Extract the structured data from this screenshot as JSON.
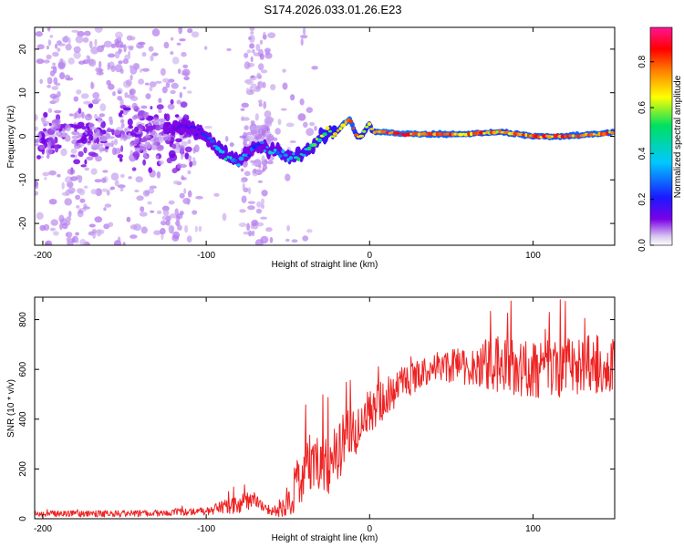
{
  "figure_title": "S174.2026.033.01.26.E23",
  "chart_data": [
    {
      "type": "heatmap",
      "title": "S174.2026.033.01.26.E23",
      "xlabel": "Height of straight line (km)",
      "ylabel": "Frequency (Hz)",
      "xlim": [
        -205,
        150
      ],
      "ylim": [
        -25,
        25
      ],
      "xticks": [
        -200,
        -100,
        0,
        100
      ],
      "yticks": [
        -20,
        -10,
        0,
        10,
        20
      ],
      "colorbar": {
        "label": "Normalized spectral amplitude",
        "range": [
          0,
          0.95
        ],
        "ticks": [
          0.0,
          0.2,
          0.4,
          0.6,
          0.8
        ],
        "colormap": [
          "#d8c8f0",
          "#7a00e6",
          "#1a1aff",
          "#00c8ff",
          "#00e060",
          "#ffff00",
          "#ff8000",
          "#ff0000",
          "#ff1493"
        ]
      },
      "ridge": {
        "x": [
          -120,
          -110,
          -100,
          -90,
          -80,
          -70,
          -60,
          -50,
          -40,
          -35,
          -30,
          -25,
          -20,
          -15,
          -12,
          -8,
          -5,
          -2,
          0,
          2,
          5,
          10,
          20,
          40,
          60,
          80,
          100,
          120,
          140,
          150
        ],
        "frequency": [
          2,
          2,
          0,
          -4,
          -6,
          -2,
          -3,
          -5,
          -4,
          -2,
          0,
          1,
          1,
          3,
          4,
          0,
          0,
          2,
          3,
          1,
          1,
          1,
          0.5,
          0.5,
          0.5,
          1,
          0,
          0,
          0.5,
          1
        ],
        "amplitude": [
          0.15,
          0.2,
          0.3,
          0.45,
          0.4,
          0.3,
          0.4,
          0.45,
          0.5,
          0.5,
          0.6,
          0.6,
          0.7,
          0.85,
          0.9,
          0.75,
          0.6,
          0.7,
          0.8,
          0.7,
          0.85,
          0.9,
          0.9,
          0.85,
          0.85,
          0.8,
          0.85,
          0.85,
          0.85,
          0.8
        ]
      }
    },
    {
      "type": "line",
      "title": "",
      "xlabel": "Height of straight line (km)",
      "ylabel": "SNR (10 * v/v)",
      "xlim": [
        -205,
        150
      ],
      "ylim": [
        0,
        890
      ],
      "xticks": [
        -200,
        -100,
        0,
        100
      ],
      "yticks": [
        0,
        200,
        400,
        600,
        800
      ],
      "color": "#ee2222",
      "trend": {
        "x": [
          -205,
          -150,
          -100,
          -80,
          -70,
          -60,
          -50,
          -40,
          -30,
          -25,
          -20,
          -10,
          0,
          10,
          20,
          30,
          40,
          50,
          60,
          80,
          100,
          120,
          140,
          150
        ],
        "y": [
          20,
          20,
          30,
          60,
          80,
          30,
          60,
          200,
          250,
          220,
          280,
          350,
          430,
          490,
          540,
          580,
          600,
          610,
          620,
          620,
          600,
          610,
          620,
          610
        ]
      },
      "noise_amplitude": {
        "x": [
          -205,
          -100,
          -80,
          -60,
          -40,
          -20,
          0,
          40,
          80,
          100,
          150
        ],
        "amp": [
          12,
          15,
          40,
          20,
          120,
          130,
          90,
          50,
          120,
          120,
          120
        ]
      }
    }
  ]
}
